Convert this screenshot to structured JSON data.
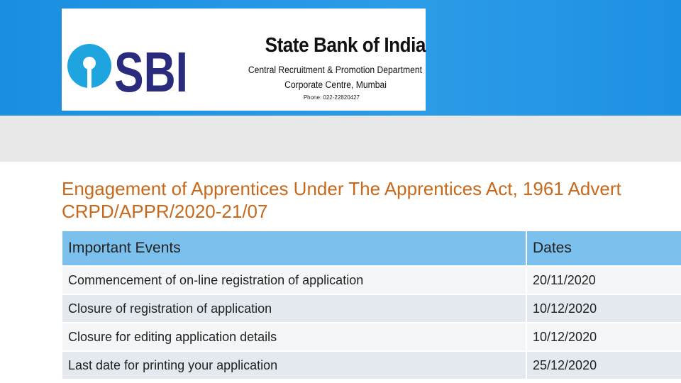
{
  "header": {
    "logo_text": "SBI",
    "bank_name": "State Bank of India",
    "department": "Central Recruitment & Promotion Department",
    "office": "Corporate Centre, Mumbai",
    "phone": "Phone: 022-22820427"
  },
  "page": {
    "title_line1": "Engagement of Apprentices Under The Apprentices Act, 1961 Advert",
    "title_line2": "CRPD/APPR/2020-21/07"
  },
  "table": {
    "header": [
      "Important Events",
      "Dates"
    ],
    "rows": [
      [
        "Commencement of on-line registration of application",
        "20/11/2020"
      ],
      [
        "Closure of registration of application",
        "10/12/2020"
      ],
      [
        "Closure for editing application details",
        "10/12/2020"
      ],
      [
        "Last date for printing your application",
        "25/12/2020"
      ]
    ]
  }
}
